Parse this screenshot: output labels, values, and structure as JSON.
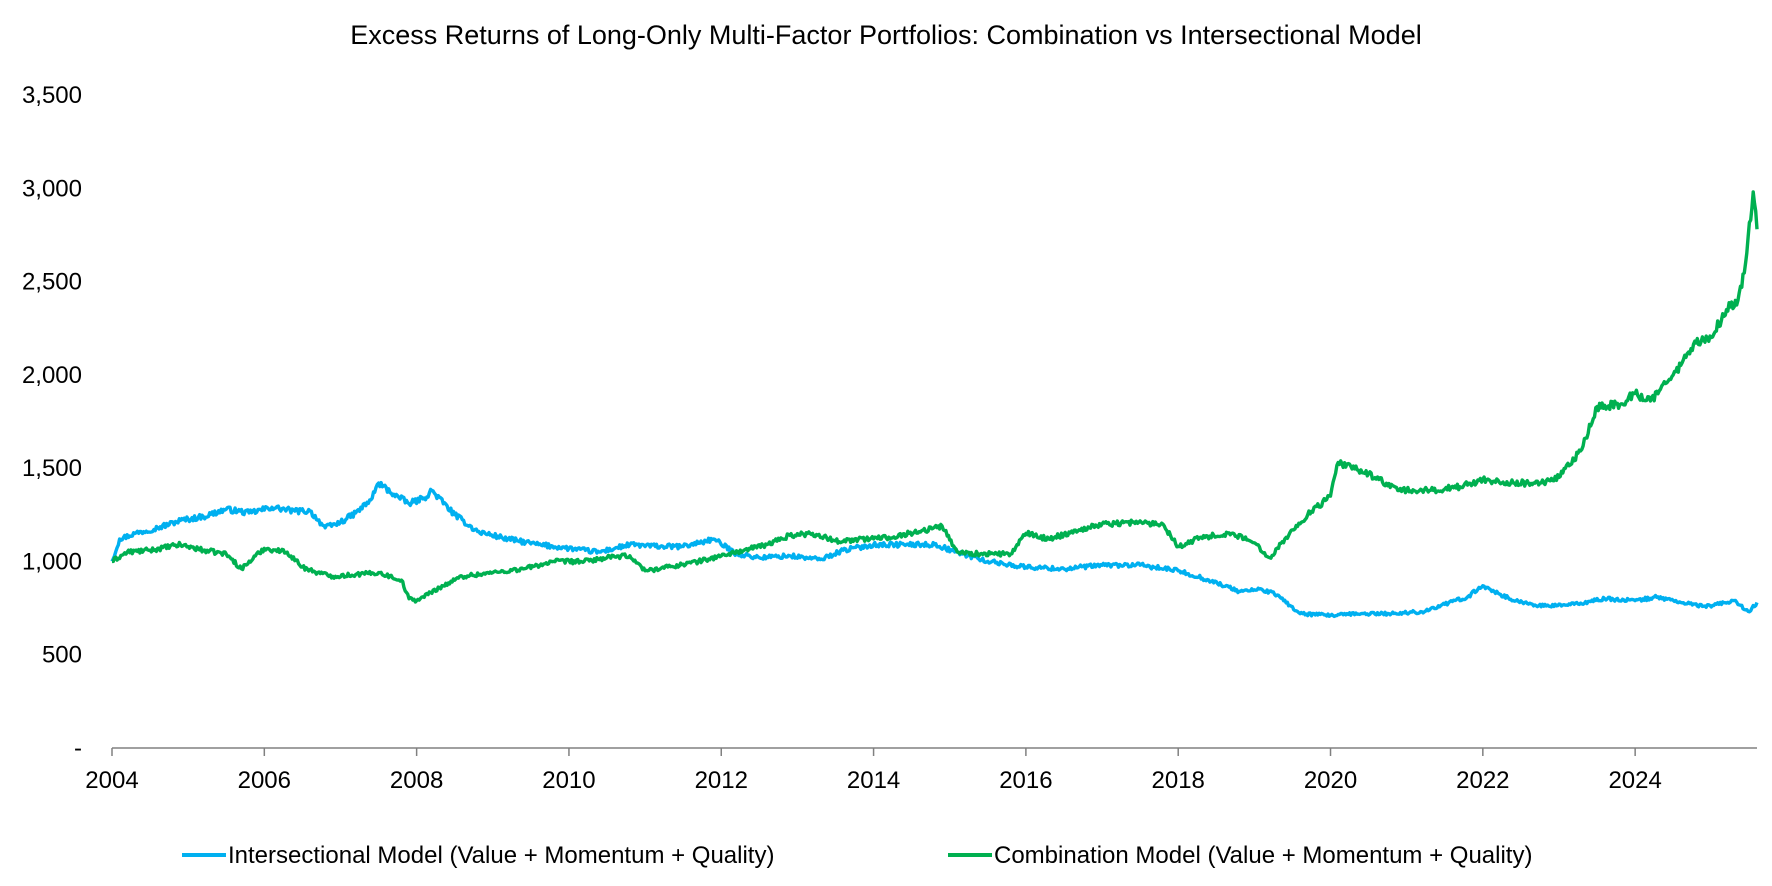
{
  "chart_data": {
    "type": "line",
    "title": "Excess Returns of Long-Only Multi-Factor Portfolios: Combination vs Intersectional Model",
    "xlabel": "",
    "ylabel": "",
    "x_ticks": [
      "2004",
      "2006",
      "2008",
      "2010",
      "2012",
      "2014",
      "2016",
      "2018",
      "2020",
      "2022",
      "2024"
    ],
    "y_ticks": [
      "-",
      "500",
      "1,000",
      "1,500",
      "2,000",
      "2,500",
      "3,000",
      "3,500"
    ],
    "xlim": [
      2004.0,
      2025.6
    ],
    "ylim": [
      0,
      3500
    ],
    "grid": false,
    "legend_position": "bottom",
    "series": [
      {
        "name": "Intersectional Model (Value + Momentum + Quality)",
        "color": "#00B0F0",
        "x": [
          2004.0,
          2004.1,
          2004.3,
          2004.6,
          2004.9,
          2005.2,
          2005.5,
          2005.8,
          2006.1,
          2006.4,
          2006.6,
          2006.8,
          2007.0,
          2007.2,
          2007.4,
          2007.5,
          2007.7,
          2007.9,
          2008.1,
          2008.2,
          2008.5,
          2008.8,
          2009.2,
          2009.6,
          2010.0,
          2010.4,
          2010.8,
          2011.2,
          2011.5,
          2011.9,
          2012.2,
          2012.5,
          2012.9,
          2013.3,
          2013.6,
          2014.0,
          2014.4,
          2014.8,
          2015.1,
          2015.5,
          2016.0,
          2016.5,
          2017.0,
          2017.5,
          2018.0,
          2018.4,
          2018.8,
          2019.1,
          2019.3,
          2019.6,
          2020.0,
          2020.4,
          2020.8,
          2021.2,
          2021.5,
          2021.8,
          2022.0,
          2022.4,
          2022.8,
          2023.2,
          2023.6,
          2024.0,
          2024.3,
          2024.6,
          2024.9,
          2025.1,
          2025.3,
          2025.5,
          2025.6
        ],
        "y": [
          1000,
          1120,
          1150,
          1180,
          1220,
          1240,
          1280,
          1260,
          1290,
          1270,
          1270,
          1180,
          1210,
          1260,
          1330,
          1420,
          1360,
          1310,
          1340,
          1380,
          1250,
          1160,
          1120,
          1090,
          1070,
          1050,
          1090,
          1080,
          1080,
          1120,
          1040,
          1020,
          1030,
          1010,
          1060,
          1090,
          1090,
          1090,
          1050,
          1000,
          970,
          960,
          980,
          980,
          950,
          900,
          840,
          850,
          820,
          720,
          710,
          720,
          720,
          730,
          770,
          810,
          870,
          790,
          760,
          770,
          800,
          790,
          810,
          780,
          760,
          770,
          790,
          730,
          780
        ],
        "values_note_hidden": false
      },
      {
        "name": "Combination Model (Value + Momentum + Quality)",
        "color": "#00B050",
        "x": [
          2004.0,
          2004.2,
          2004.5,
          2004.9,
          2005.2,
          2005.5,
          2005.7,
          2006.0,
          2006.3,
          2006.5,
          2006.7,
          2006.9,
          2007.2,
          2007.5,
          2007.8,
          2007.9,
          2008.0,
          2008.3,
          2008.6,
          2009.0,
          2009.4,
          2009.8,
          2010.2,
          2010.5,
          2010.8,
          2011.0,
          2011.3,
          2011.7,
          2012.0,
          2012.3,
          2012.6,
          2012.9,
          2013.2,
          2013.5,
          2013.9,
          2014.2,
          2014.6,
          2014.9,
          2015.1,
          2015.4,
          2015.8,
          2016.0,
          2016.3,
          2016.7,
          2017.0,
          2017.4,
          2017.8,
          2018.0,
          2018.3,
          2018.7,
          2019.0,
          2019.2,
          2019.4,
          2019.7,
          2020.0,
          2020.1,
          2020.5,
          2020.9,
          2021.3,
          2021.7,
          2022.0,
          2022.4,
          2022.8,
          2023.0,
          2023.3,
          2023.5,
          2023.8,
          2024.0,
          2024.2,
          2024.5,
          2024.8,
          2025.0,
          2025.2,
          2025.35,
          2025.45,
          2025.55,
          2025.6
        ],
        "y": [
          1000,
          1050,
          1060,
          1090,
          1060,
          1040,
          960,
          1070,
          1050,
          970,
          940,
          920,
          930,
          940,
          900,
          800,
          790,
          860,
          920,
          940,
          960,
          1000,
          1000,
          1020,
          1030,
          950,
          970,
          1000,
          1030,
          1060,
          1090,
          1140,
          1150,
          1110,
          1120,
          1130,
          1160,
          1190,
          1050,
          1040,
          1040,
          1150,
          1120,
          1170,
          1200,
          1210,
          1200,
          1080,
          1130,
          1150,
          1100,
          1020,
          1120,
          1250,
          1350,
          1530,
          1470,
          1380,
          1380,
          1400,
          1440,
          1420,
          1420,
          1450,
          1600,
          1830,
          1840,
          1900,
          1860,
          2000,
          2170,
          2200,
          2350,
          2400,
          2600,
          2980,
          2780
        ]
      }
    ]
  }
}
